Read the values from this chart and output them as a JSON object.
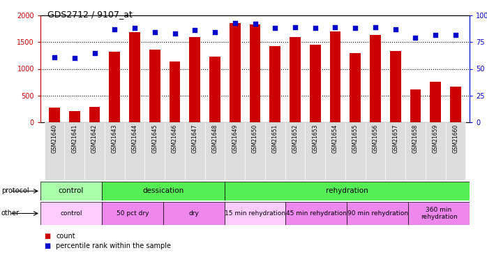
{
  "title": "GDS2712 / 9107_at",
  "samples": [
    "GSM21640",
    "GSM21641",
    "GSM21642",
    "GSM21643",
    "GSM21644",
    "GSM21645",
    "GSM21646",
    "GSM21647",
    "GSM21648",
    "GSM21649",
    "GSM21650",
    "GSM21651",
    "GSM21652",
    "GSM21653",
    "GSM21654",
    "GSM21655",
    "GSM21656",
    "GSM21657",
    "GSM21658",
    "GSM21659",
    "GSM21660"
  ],
  "counts": [
    280,
    210,
    290,
    1320,
    1680,
    1360,
    1140,
    1600,
    1230,
    1850,
    1830,
    1430,
    1600,
    1450,
    1700,
    1290,
    1640,
    1330,
    610,
    760,
    670
  ],
  "percentile_ranks": [
    61,
    60,
    65,
    87,
    88,
    84,
    83,
    86,
    84,
    93,
    92,
    88,
    89,
    88,
    89,
    88,
    89,
    87,
    79,
    82,
    82
  ],
  "bar_color": "#cc0000",
  "dot_color": "#0000cc",
  "ylim_left": [
    0,
    2000
  ],
  "ylim_right": [
    0,
    100
  ],
  "yticks_left": [
    0,
    500,
    1000,
    1500,
    2000
  ],
  "yticks_right": [
    0,
    25,
    50,
    75,
    100
  ],
  "ytick_labels_right": [
    "0",
    "25",
    "50",
    "75",
    "100%"
  ],
  "grid_values": [
    500,
    1000,
    1500
  ],
  "protocol_groups": [
    {
      "label": "control",
      "start": 0,
      "end": 3,
      "color": "#aaffaa"
    },
    {
      "label": "dessication",
      "start": 3,
      "end": 9,
      "color": "#55ee55"
    },
    {
      "label": "rehydration",
      "start": 9,
      "end": 21,
      "color": "#55ee55"
    }
  ],
  "other_groups": [
    {
      "label": "control",
      "start": 0,
      "end": 3,
      "color": "#ffccff"
    },
    {
      "label": "50 pct dry",
      "start": 3,
      "end": 6,
      "color": "#ee88ee"
    },
    {
      "label": "dry",
      "start": 6,
      "end": 9,
      "color": "#ee88ee"
    },
    {
      "label": "15 min rehydration",
      "start": 9,
      "end": 12,
      "color": "#ffccff"
    },
    {
      "label": "45 min rehydration",
      "start": 12,
      "end": 15,
      "color": "#ee88ee"
    },
    {
      "label": "90 min rehydration",
      "start": 15,
      "end": 18,
      "color": "#ee88ee"
    },
    {
      "label": "360 min\nrehydration",
      "start": 18,
      "end": 21,
      "color": "#ee88ee"
    }
  ],
  "bg_color": "#ffffff",
  "xtick_bg": "#dddddd",
  "tick_color_left": "#cc0000",
  "tick_color_right": "#0000cc"
}
